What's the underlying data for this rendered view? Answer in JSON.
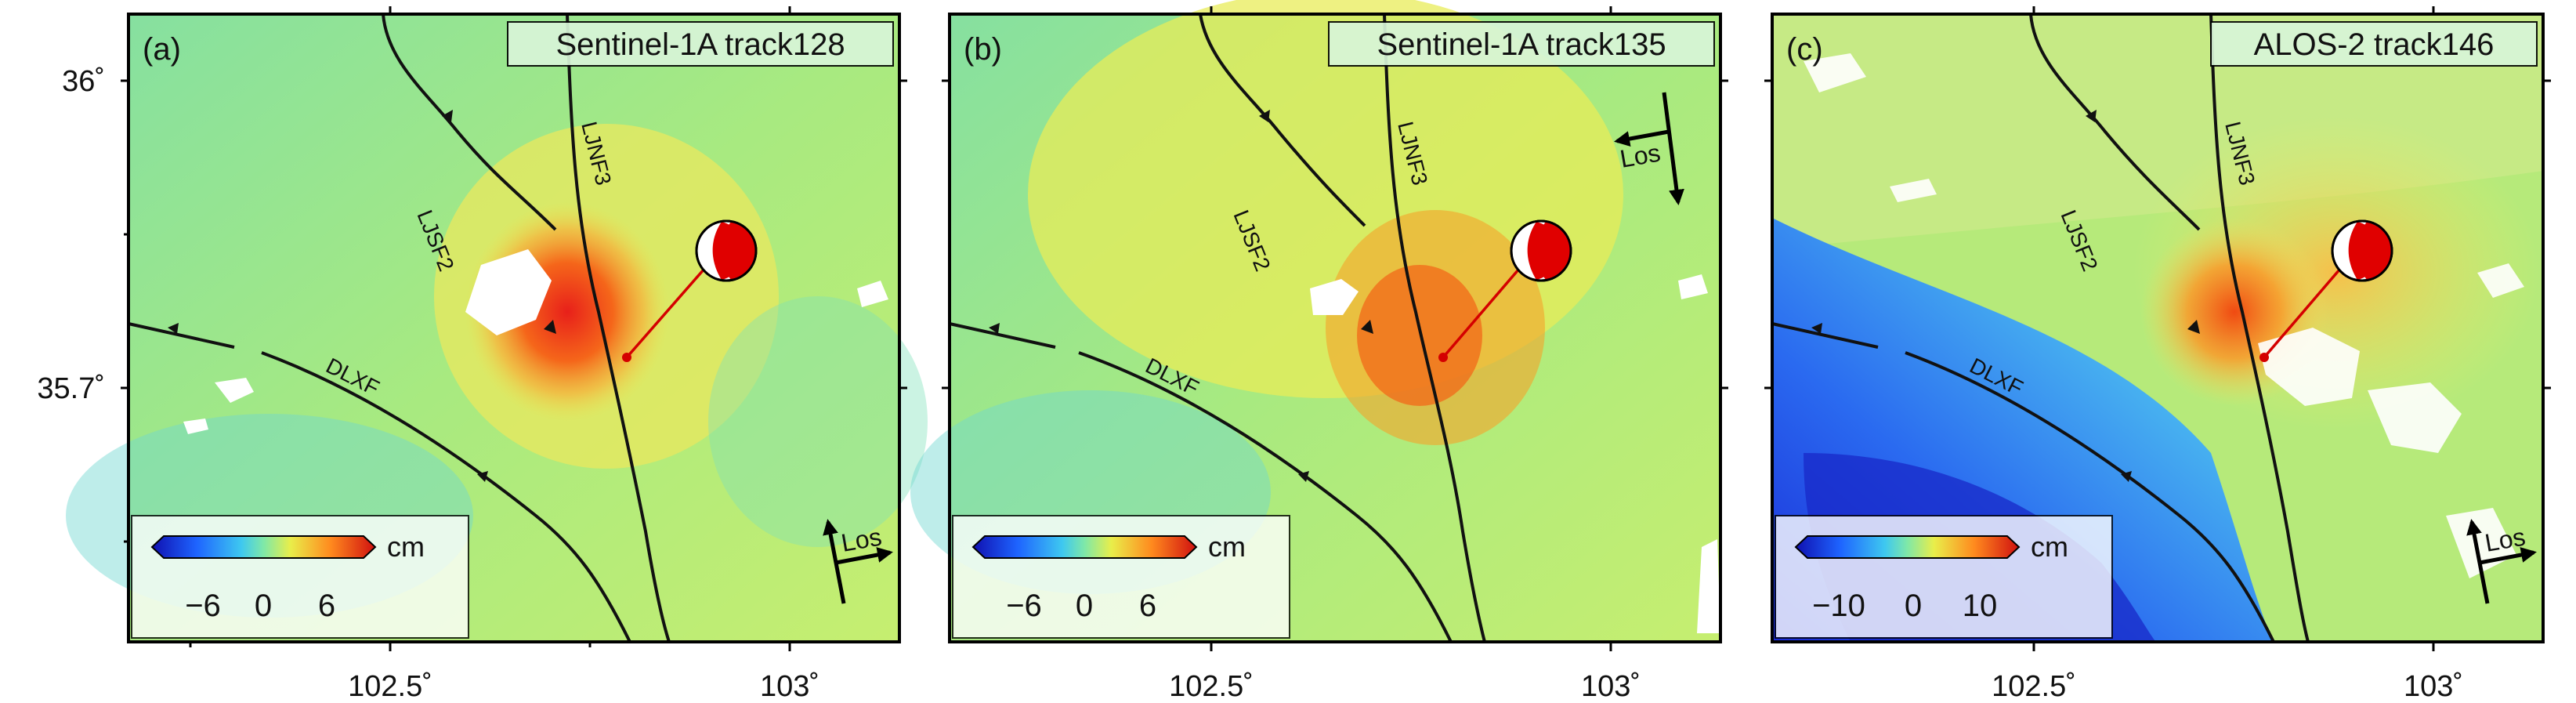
{
  "panels": [
    {
      "id": "a",
      "letter": "(a)",
      "title": "Sentinel-1A track128",
      "cb_ticks": [
        "−6",
        "0",
        "6"
      ],
      "cb_unit": "cm",
      "los": "Los",
      "los_dir": "ascending",
      "show_lat": true,
      "show_lon": true
    },
    {
      "id": "b",
      "letter": "(b)",
      "title": "Sentinel-1A track135",
      "cb_ticks": [
        "−6",
        "0",
        "6"
      ],
      "cb_unit": "cm",
      "los": "Los",
      "los_dir": "descending",
      "show_lat": false,
      "show_lon": true
    },
    {
      "id": "c",
      "letter": "(c)",
      "title": "ALOS-2 track146",
      "cb_ticks": [
        "−10",
        "0",
        "10"
      ],
      "cb_unit": "cm",
      "los": "Los",
      "los_dir": "ascending",
      "show_lat": false,
      "show_lon": true
    }
  ],
  "lat_labels": [
    "36˚",
    "35.7˚"
  ],
  "lon_labels": [
    "102.5˚",
    "103˚"
  ],
  "faults": [
    "LJSF2",
    "LJNF3",
    "DLXF"
  ],
  "colors": {
    "frame": "#000000",
    "fault": "#111111",
    "epicenter_line": "#d40000",
    "beachball_red": "#e00000"
  }
}
